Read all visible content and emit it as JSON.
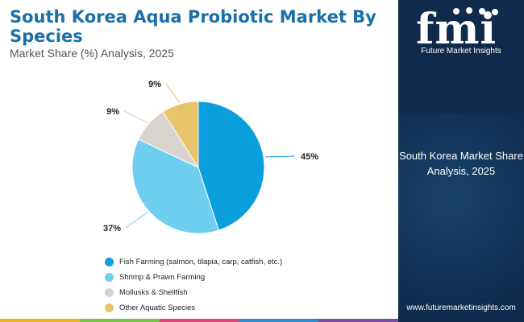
{
  "header": {
    "title": "South Korea Aqua Probiotic Market By Species",
    "subtitle": "Market Share (%) Analysis, 2025"
  },
  "side_panel": {
    "logo_text": "fmi",
    "logo_tagline": "Future Market Insights",
    "label": "South Korea Market Share Analysis, 2025",
    "website": "www.futuremarketinsights.com"
  },
  "colors": {
    "title": "#1a6fa6",
    "panel": "#0f2a4a",
    "bar": [
      "#f0b429",
      "#7cc242",
      "#e0457b",
      "#2a8cd3",
      "#7b4fa0"
    ]
  },
  "chart_data": {
    "type": "pie",
    "title": "South Korea Aqua Probiotic Market By Species",
    "subtitle": "Market Share (%) Analysis, 2025",
    "categories": [
      "Fish Farming (salmon, tilapia, carp, catfish, etc.)",
      "Shrimp & Prawn Farming",
      "Mollusks & Shellfish",
      "Other Aquatic Species"
    ],
    "values": [
      45,
      37,
      9,
      9
    ],
    "labels": [
      "45%",
      "37%",
      "9%",
      "9%"
    ],
    "colors": [
      "#0a9fdc",
      "#6ecff0",
      "#d8d3cd",
      "#e8c46a"
    ],
    "legend_position": "bottom"
  }
}
